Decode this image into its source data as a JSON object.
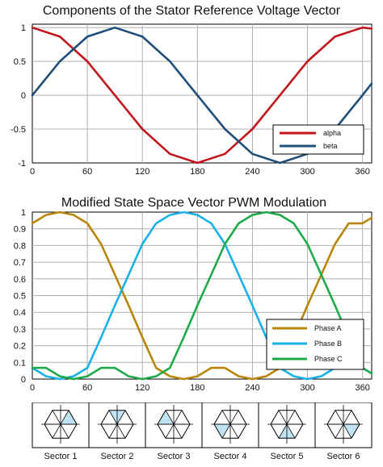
{
  "chart_data": [
    {
      "type": "line",
      "title": "Components of the Stator Reference Voltage Vector",
      "xlabel": "",
      "ylabel": "",
      "xlim": [
        0,
        370
      ],
      "ylim": [
        -1,
        1.05
      ],
      "xticks": [
        "0",
        "60",
        "120",
        "180",
        "240",
        "300",
        "360"
      ],
      "yticks": [
        "1",
        "0.5",
        "0",
        "-0.5",
        "-1"
      ],
      "grid": true,
      "legend_position": "bottom-right",
      "series": [
        {
          "name": "alpha",
          "color": "#c0161c",
          "x": [
            0,
            30,
            60,
            90,
            120,
            150,
            180,
            210,
            240,
            270,
            300,
            330,
            360,
            370
          ],
          "values": [
            1,
            0.866,
            0.5,
            0,
            -0.5,
            -0.866,
            -1,
            -0.866,
            -0.5,
            0,
            0.5,
            0.866,
            1,
            0.985
          ]
        },
        {
          "name": "beta",
          "color": "#1f4e79",
          "x": [
            0,
            30,
            60,
            90,
            120,
            150,
            180,
            210,
            240,
            270,
            300,
            330,
            360,
            370
          ],
          "values": [
            0,
            0.5,
            0.866,
            1,
            0.866,
            0.5,
            0,
            -0.5,
            -0.866,
            -1,
            -0.866,
            -0.5,
            0,
            0.174
          ]
        }
      ]
    },
    {
      "type": "line",
      "title": "Modified State Space Vector PWM Modulation",
      "xlabel": "",
      "ylabel": "",
      "xlim": [
        0,
        370
      ],
      "ylim": [
        0,
        1
      ],
      "xticks": [
        "0",
        "60",
        "120",
        "180",
        "240",
        "300",
        "360"
      ],
      "yticks": [
        "1",
        "0.9",
        "0.8",
        "0.7",
        "0.6",
        "0.5",
        "0.4",
        "0.3",
        "0.2",
        "0.1",
        "0"
      ],
      "grid": true,
      "legend_position": "bottom-right",
      "series": [
        {
          "name": "Phase A",
          "color": "#b8860b",
          "x": [
            0,
            15,
            30,
            45,
            60,
            75,
            90,
            105,
            120,
            135,
            150,
            165,
            180,
            195,
            210,
            225,
            240,
            255,
            270,
            285,
            300,
            315,
            330,
            345,
            360,
            370
          ],
          "values": [
            0.933,
            0.983,
            1.0,
            0.983,
            0.933,
            0.809,
            0.625,
            0.441,
            0.25,
            0.067,
            0.017,
            0.0,
            0.017,
            0.067,
            0.067,
            0.017,
            0.0,
            0.017,
            0.067,
            0.25,
            0.441,
            0.625,
            0.809,
            0.933,
            0.933,
            0.966
          ]
        },
        {
          "name": "Phase B",
          "color": "#1ab0e8",
          "x": [
            0,
            15,
            30,
            45,
            60,
            75,
            90,
            105,
            120,
            135,
            150,
            165,
            180,
            195,
            210,
            225,
            240,
            255,
            270,
            285,
            300,
            315,
            330,
            345,
            360,
            370
          ],
          "values": [
            0.067,
            0.017,
            0.0,
            0.017,
            0.067,
            0.25,
            0.441,
            0.625,
            0.809,
            0.933,
            0.983,
            1.0,
            0.983,
            0.933,
            0.809,
            0.625,
            0.441,
            0.25,
            0.067,
            0.017,
            0.0,
            0.017,
            0.067,
            0.067,
            0.067,
            0.034
          ]
        },
        {
          "name": "Phase C",
          "color": "#1faa4a",
          "x": [
            0,
            15,
            30,
            45,
            60,
            75,
            90,
            105,
            120,
            135,
            150,
            165,
            180,
            195,
            210,
            225,
            240,
            255,
            270,
            285,
            300,
            315,
            330,
            345,
            360,
            370
          ],
          "values": [
            0.067,
            0.067,
            0.017,
            0.0,
            0.017,
            0.067,
            0.067,
            0.017,
            0.0,
            0.017,
            0.067,
            0.25,
            0.441,
            0.625,
            0.809,
            0.933,
            0.983,
            1.0,
            0.983,
            0.933,
            0.809,
            0.625,
            0.441,
            0.25,
            0.067,
            0.034
          ]
        }
      ]
    }
  ],
  "sectors": [
    {
      "label": "Sector 1",
      "shaded": 1
    },
    {
      "label": "Sector 2",
      "shaded": 2
    },
    {
      "label": "Sector 3",
      "shaded": 3
    },
    {
      "label": "Sector 4",
      "shaded": 4
    },
    {
      "label": "Sector 5",
      "shaded": 5
    },
    {
      "label": "Sector 6",
      "shaded": 6
    }
  ],
  "colors": {
    "grid": "#b0b0b0",
    "sector_fill": "#bfe3f2"
  }
}
